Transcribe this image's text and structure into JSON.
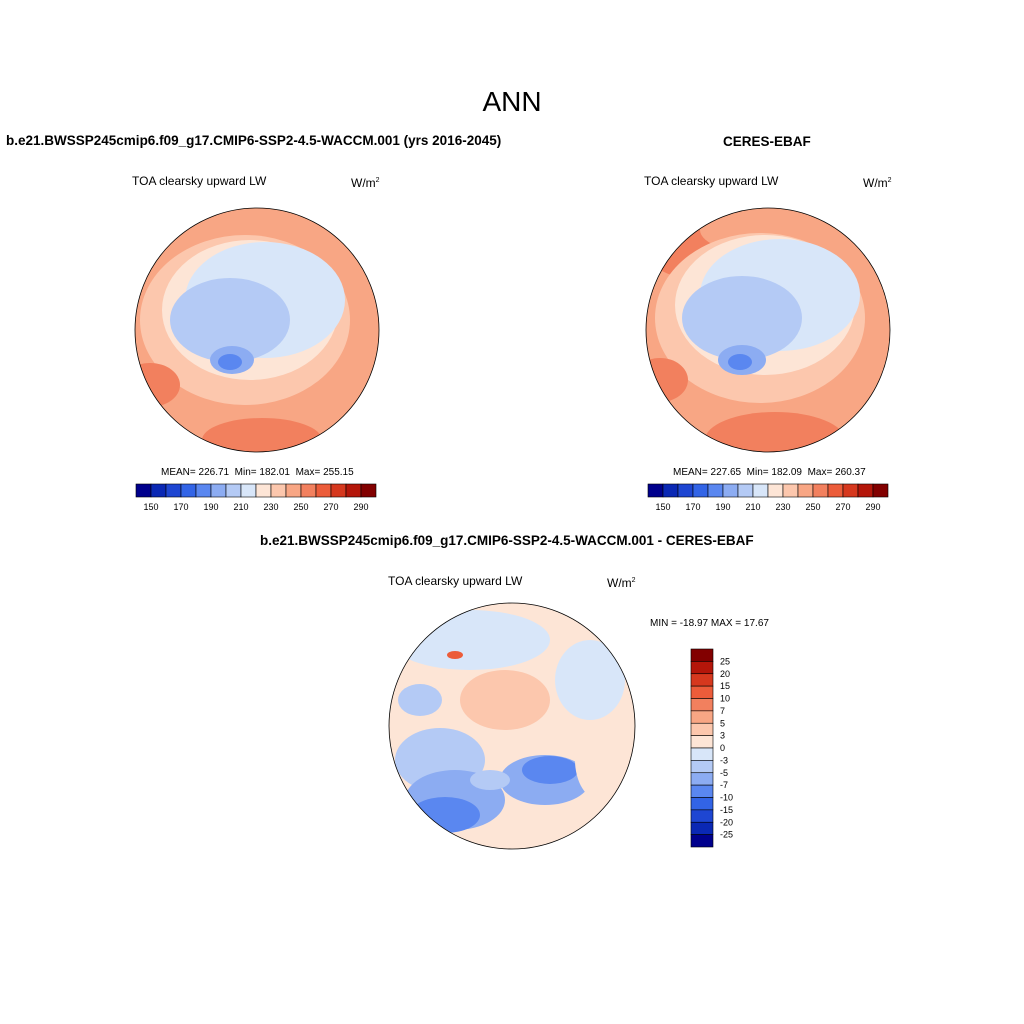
{
  "figure": {
    "title": "ANN"
  },
  "panels": [
    {
      "title": "b.e21.BWSSP245cmip6.f09_g17.CMIP6-SSP2-4.5-WACCM.001 (yrs 2016-2045)",
      "variable": "TOA clearsky upward LW",
      "units_base": "W/m",
      "units_exp": "2",
      "stats": {
        "mean_label": "MEAN=",
        "mean": "226.71",
        "min_label": "Min=",
        "min": "182.01",
        "max_label": "Max=",
        "max": "255.15"
      }
    },
    {
      "title": "CERES-EBAF",
      "variable": "TOA clearsky upward LW",
      "units_base": "W/m",
      "units_exp": "2",
      "stats": {
        "mean_label": "MEAN=",
        "mean": "227.65",
        "min_label": "Min=",
        "min": "182.09",
        "max_label": "Max=",
        "max": "260.37"
      }
    },
    {
      "title": "b.e21.BWSSP245cmip6.f09_g17.CMIP6-SSP2-4.5-WACCM.001 - CERES-EBAF",
      "variable": "TOA clearsky upward LW",
      "units_base": "W/m",
      "units_exp": "2",
      "minmax_label": "MIN = -18.97 MAX =  17.67"
    }
  ],
  "chart_data": [
    {
      "type": "heatmap",
      "projection": "north polar stereographic",
      "title": "b.e21.BWSSP245cmip6.f09_g17.CMIP6-SSP2-4.5-WACCM.001 (yrs 2016-2045)",
      "variable": "TOA clearsky upward LW",
      "units": "W/m2",
      "mean": 226.71,
      "min": 182.01,
      "max": 255.15,
      "colorbar": {
        "orientation": "horizontal",
        "levels": [
          150,
          160,
          170,
          180,
          190,
          200,
          210,
          220,
          230,
          240,
          250,
          260,
          270,
          280,
          290
        ],
        "tick_labels": [
          "150",
          "170",
          "190",
          "210",
          "230",
          "250",
          "270",
          "290"
        ],
        "colors": [
          "#00008c",
          "#0a28b4",
          "#1e46d2",
          "#3264e6",
          "#5a87f0",
          "#8cacf2",
          "#b4caf5",
          "#d8e6f9",
          "#fde5d6",
          "#fcc7ad",
          "#f8a684",
          "#f2805e",
          "#ec5c3a",
          "#d6381e",
          "#b4160a",
          "#820000"
        ]
      }
    },
    {
      "type": "heatmap",
      "projection": "north polar stereographic",
      "title": "CERES-EBAF",
      "variable": "TOA clearsky upward LW",
      "units": "W/m2",
      "mean": 227.65,
      "min": 182.09,
      "max": 260.37,
      "colorbar": {
        "orientation": "horizontal",
        "levels": [
          150,
          160,
          170,
          180,
          190,
          200,
          210,
          220,
          230,
          240,
          250,
          260,
          270,
          280,
          290
        ],
        "tick_labels": [
          "150",
          "170",
          "190",
          "210",
          "230",
          "250",
          "270",
          "290"
        ],
        "colors": [
          "#00008c",
          "#0a28b4",
          "#1e46d2",
          "#3264e6",
          "#5a87f0",
          "#8cacf2",
          "#b4caf5",
          "#d8e6f9",
          "#fde5d6",
          "#fcc7ad",
          "#f8a684",
          "#f2805e",
          "#ec5c3a",
          "#d6381e",
          "#b4160a",
          "#820000"
        ]
      }
    },
    {
      "type": "heatmap",
      "projection": "north polar stereographic",
      "title": "b.e21.BWSSP245cmip6.f09_g17.CMIP6-SSP2-4.5-WACCM.001 - CERES-EBAF",
      "variable": "TOA clearsky upward LW",
      "units": "W/m2",
      "min": -18.97,
      "max": 17.67,
      "colorbar": {
        "orientation": "vertical",
        "levels": [
          25,
          20,
          15,
          10,
          7,
          5,
          3,
          0,
          -3,
          -5,
          -7,
          -10,
          -15,
          -20,
          -25
        ],
        "tick_labels": [
          "25",
          "20",
          "15",
          "10",
          "7",
          "5",
          "3",
          "0",
          "-3",
          "-5",
          "-7",
          "-10",
          "-15",
          "-20",
          "-25"
        ],
        "colors": [
          "#820000",
          "#b4160a",
          "#d6381e",
          "#ec5c3a",
          "#f2805e",
          "#f8a684",
          "#fcc7ad",
          "#fde5d6",
          "#d8e6f9",
          "#b4caf5",
          "#8cacf2",
          "#5a87f0",
          "#3264e6",
          "#1e46d2",
          "#0a28b4",
          "#00008c"
        ]
      }
    }
  ]
}
